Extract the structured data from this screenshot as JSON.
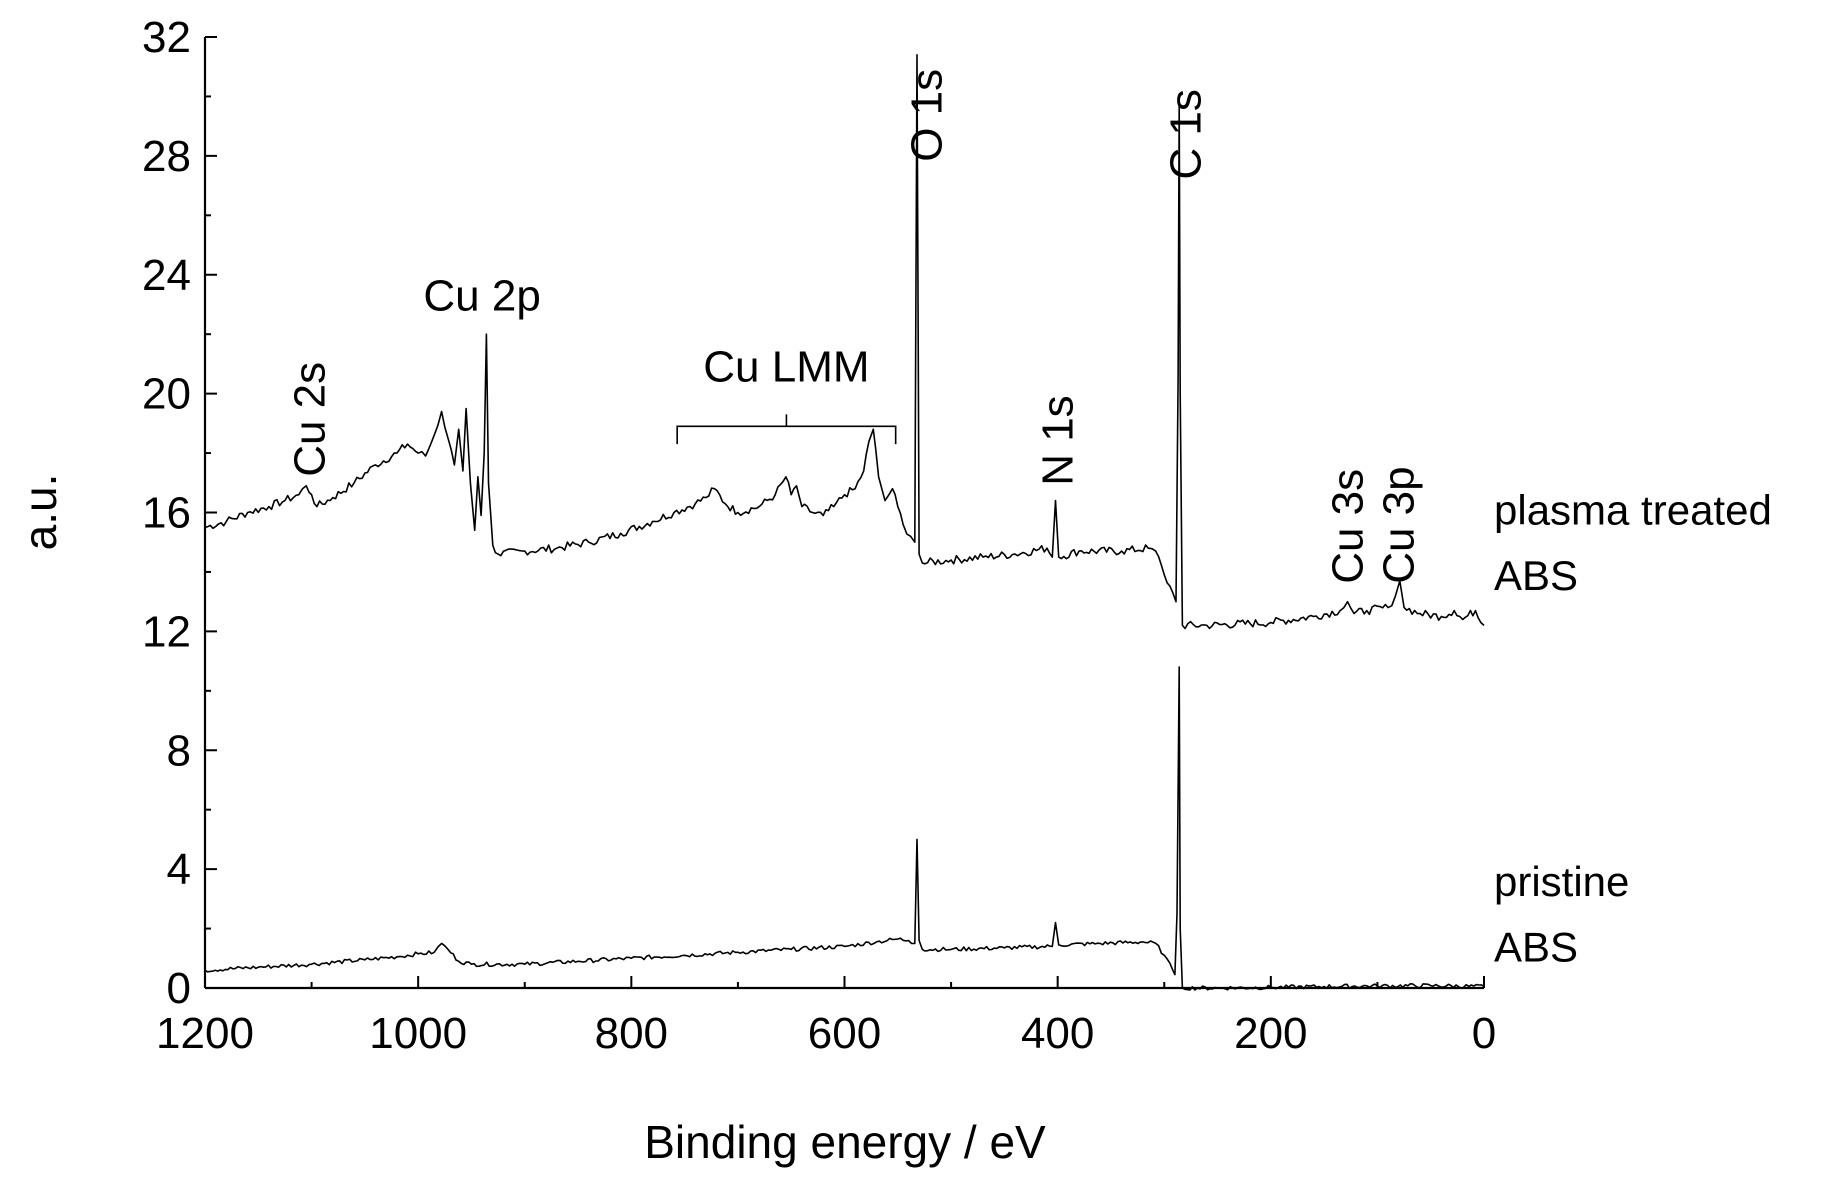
{
  "chart_data": {
    "type": "line",
    "xlabel": "Binding energy / eV",
    "ylabel": "a.u.",
    "xlim": [
      1200,
      0
    ],
    "ylim": [
      0,
      32
    ],
    "x_reversed": true,
    "x_ticks": [
      "1200",
      "1000",
      "800",
      "600",
      "400",
      "200",
      "0"
    ],
    "y_ticks": [
      "0",
      "4",
      "8",
      "12",
      "16",
      "20",
      "24",
      "28",
      "32"
    ],
    "grid": false,
    "series": [
      {
        "name": "plasma treated ABS",
        "label_lines": [
          "plasma treated",
          "ABS"
        ],
        "label_y": [
          15.6,
          13.4
        ],
        "points": [
          [
            1200,
            15.5
          ],
          [
            1180,
            15.7
          ],
          [
            1160,
            16.0
          ],
          [
            1140,
            16.2
          ],
          [
            1125,
            16.4
          ],
          [
            1112,
            16.6
          ],
          [
            1105,
            16.9
          ],
          [
            1100,
            16.6
          ],
          [
            1095,
            16.2
          ],
          [
            1080,
            16.5
          ],
          [
            1060,
            17.0
          ],
          [
            1040,
            17.6
          ],
          [
            1020,
            18.0
          ],
          [
            1010,
            18.3
          ],
          [
            1000,
            18.0
          ],
          [
            993,
            17.9
          ],
          [
            985,
            18.6
          ],
          [
            978,
            19.4
          ],
          [
            972,
            18.5
          ],
          [
            966,
            17.6
          ],
          [
            962,
            18.8
          ],
          [
            958,
            17.4
          ],
          [
            955,
            19.5
          ],
          [
            951,
            17.0
          ],
          [
            947,
            15.4
          ],
          [
            944,
            17.2
          ],
          [
            941,
            15.9
          ],
          [
            938,
            18.0
          ],
          [
            936,
            22.0
          ],
          [
            934,
            17.0
          ],
          [
            930,
            14.9
          ],
          [
            925,
            14.6
          ],
          [
            900,
            14.7
          ],
          [
            870,
            14.8
          ],
          [
            840,
            15.0
          ],
          [
            810,
            15.3
          ],
          [
            780,
            15.7
          ],
          [
            760,
            16.0
          ],
          [
            740,
            16.3
          ],
          [
            730,
            16.5
          ],
          [
            722,
            16.8
          ],
          [
            712,
            16.3
          ],
          [
            700,
            16.0
          ],
          [
            680,
            16.2
          ],
          [
            665,
            16.6
          ],
          [
            655,
            17.2
          ],
          [
            650,
            16.6
          ],
          [
            645,
            16.9
          ],
          [
            640,
            16.2
          ],
          [
            630,
            16.0
          ],
          [
            620,
            15.9
          ],
          [
            610,
            16.2
          ],
          [
            600,
            16.6
          ],
          [
            590,
            16.8
          ],
          [
            582,
            17.4
          ],
          [
            577,
            18.4
          ],
          [
            573,
            18.8
          ],
          [
            568,
            17.2
          ],
          [
            562,
            16.4
          ],
          [
            555,
            16.8
          ],
          [
            550,
            16.2
          ],
          [
            545,
            15.6
          ],
          [
            538,
            15.2
          ],
          [
            534,
            15.0
          ],
          [
            532,
            31.4
          ],
          [
            530,
            14.6
          ],
          [
            527,
            14.3
          ],
          [
            500,
            14.4
          ],
          [
            470,
            14.5
          ],
          [
            440,
            14.6
          ],
          [
            410,
            14.8
          ],
          [
            405,
            14.5
          ],
          [
            402,
            16.4
          ],
          [
            399,
            14.5
          ],
          [
            380,
            14.7
          ],
          [
            340,
            14.7
          ],
          [
            315,
            14.8
          ],
          [
            308,
            14.7
          ],
          [
            300,
            13.9
          ],
          [
            292,
            13.3
          ],
          [
            289,
            13.0
          ],
          [
            287,
            20.5
          ],
          [
            286,
            29.8
          ],
          [
            285,
            20.0
          ],
          [
            283,
            12.2
          ],
          [
            260,
            12.2
          ],
          [
            200,
            12.3
          ],
          [
            160,
            12.5
          ],
          [
            135,
            12.7
          ],
          [
            128,
            13.0
          ],
          [
            122,
            12.6
          ],
          [
            110,
            12.7
          ],
          [
            90,
            12.8
          ],
          [
            83,
            13.2
          ],
          [
            79,
            13.7
          ],
          [
            75,
            12.8
          ],
          [
            60,
            12.6
          ],
          [
            40,
            12.5
          ],
          [
            28,
            12.7
          ],
          [
            20,
            12.4
          ],
          [
            8,
            12.7
          ],
          [
            3,
            12.3
          ],
          [
            0,
            12.2
          ]
        ]
      },
      {
        "name": "pristine ABS",
        "label_lines": [
          "pristine",
          "ABS"
        ],
        "label_y": [
          3.1,
          0.9
        ],
        "points": [
          [
            1200,
            0.6
          ],
          [
            1150,
            0.7
          ],
          [
            1100,
            0.8
          ],
          [
            1050,
            0.95
          ],
          [
            1020,
            1.05
          ],
          [
            1000,
            1.15
          ],
          [
            985,
            1.2
          ],
          [
            978,
            1.5
          ],
          [
            972,
            1.3
          ],
          [
            962,
            0.9
          ],
          [
            950,
            0.8
          ],
          [
            900,
            0.8
          ],
          [
            850,
            0.9
          ],
          [
            800,
            1.0
          ],
          [
            750,
            1.1
          ],
          [
            700,
            1.2
          ],
          [
            650,
            1.3
          ],
          [
            600,
            1.4
          ],
          [
            570,
            1.55
          ],
          [
            550,
            1.65
          ],
          [
            540,
            1.6
          ],
          [
            534,
            1.5
          ],
          [
            532,
            5.0
          ],
          [
            530,
            1.6
          ],
          [
            527,
            1.3
          ],
          [
            500,
            1.3
          ],
          [
            450,
            1.35
          ],
          [
            405,
            1.4
          ],
          [
            402,
            2.2
          ],
          [
            399,
            1.45
          ],
          [
            360,
            1.5
          ],
          [
            320,
            1.55
          ],
          [
            308,
            1.5
          ],
          [
            300,
            1.1
          ],
          [
            292,
            0.6
          ],
          [
            290,
            0.45
          ],
          [
            288,
            2.5
          ],
          [
            286,
            10.8
          ],
          [
            285,
            2.0
          ],
          [
            283,
            0.0
          ],
          [
            250,
            0.0
          ],
          [
            200,
            0.02
          ],
          [
            150,
            0.05
          ],
          [
            100,
            0.07
          ],
          [
            50,
            0.08
          ],
          [
            0,
            0.05
          ]
        ]
      }
    ],
    "annotations": [
      {
        "text": "Cu 2s",
        "x": 1102,
        "y": 17.2,
        "rotate": true
      },
      {
        "text": "Cu 2p",
        "x": 940,
        "y": 22.8,
        "rotate": false
      },
      {
        "text": "O 1s",
        "x": 523,
        "y": 27.8,
        "rotate": true
      },
      {
        "text": "N 1s",
        "x": 400,
        "y": 16.9,
        "rotate": true
      },
      {
        "text": "C 1s",
        "x": 280,
        "y": 27.2,
        "rotate": true
      },
      {
        "text": "Cu 3s",
        "x": 128,
        "y": 13.6,
        "rotate": true
      },
      {
        "text": "Cu 3p",
        "x": 80,
        "y": 13.6,
        "rotate": true
      }
    ],
    "bracket": {
      "text": "Cu LMM",
      "x_start": 757,
      "x_end": 552,
      "y": 18.9,
      "tick": 0.6,
      "label_y": 20.4
    }
  }
}
